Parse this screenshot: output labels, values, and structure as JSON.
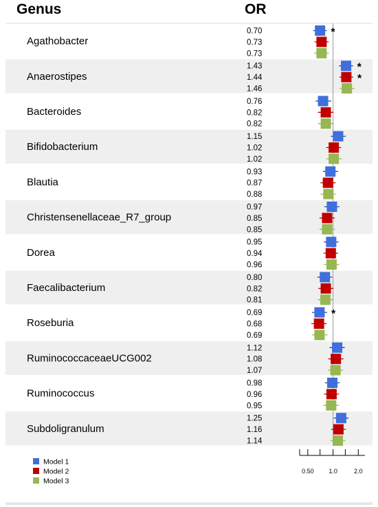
{
  "chart_data": {
    "type": "forest",
    "header": {
      "genus": "Genus",
      "or": "OR"
    },
    "x_scale": "log",
    "xlim": [
      0.4,
      2.4
    ],
    "x_ticks": [
      0.4,
      0.5,
      0.7,
      1.0,
      1.4,
      2.0
    ],
    "x_tick_labels": {
      "0.5": "0.50",
      "1": "1.0",
      "2": "2.0"
    },
    "reference_line": 1.0,
    "series": [
      {
        "name": "Model 1",
        "color": "#3e6fdc",
        "line_color": "#243c9c"
      },
      {
        "name": "Model 2",
        "color": "#c00000",
        "line_color": "#c00000"
      },
      {
        "name": "Model 3",
        "color": "#97b752",
        "line_color": "#97b752"
      }
    ],
    "rows": [
      {
        "genus": "Agathobacter",
        "or_labels": [
          "0.70",
          "0.73",
          "0.73"
        ],
        "or": [
          0.7,
          0.73,
          0.73
        ],
        "ci": [
          [
            0.58,
            0.84
          ],
          [
            0.6,
            0.89
          ],
          [
            0.6,
            0.89
          ]
        ],
        "sig": [
          true,
          false,
          false
        ]
      },
      {
        "genus": "Anaerostipes",
        "or_labels": [
          "1.43",
          "1.44",
          "1.46"
        ],
        "or": [
          1.43,
          1.44,
          1.46
        ],
        "ci": [
          [
            1.18,
            1.73
          ],
          [
            1.19,
            1.74
          ],
          [
            1.2,
            1.8
          ]
        ],
        "sig": [
          true,
          true,
          false
        ]
      },
      {
        "genus": "Bacteroides",
        "or_labels": [
          "0.76",
          "0.82",
          "0.82"
        ],
        "or": [
          0.76,
          0.82,
          0.82
        ],
        "ci": [
          [
            0.62,
            0.95
          ],
          [
            0.66,
            1.01
          ],
          [
            0.66,
            1.02
          ]
        ],
        "sig": [
          false,
          false,
          false
        ]
      },
      {
        "genus": "Bifidobacterium",
        "or_labels": [
          "1.15",
          "1.02",
          "1.02"
        ],
        "or": [
          1.15,
          1.02,
          1.02
        ],
        "ci": [
          [
            0.94,
            1.42
          ],
          [
            0.83,
            1.25
          ],
          [
            0.83,
            1.27
          ]
        ],
        "sig": [
          false,
          false,
          false
        ]
      },
      {
        "genus": "Blautia",
        "or_labels": [
          "0.93",
          "0.87",
          "0.88"
        ],
        "or": [
          0.93,
          0.87,
          0.88
        ],
        "ci": [
          [
            0.76,
            1.15
          ],
          [
            0.71,
            1.07
          ],
          [
            0.71,
            1.08
          ]
        ],
        "sig": [
          false,
          false,
          false
        ]
      },
      {
        "genus": "Christensenellaceae_R7_group",
        "or_labels": [
          "0.97",
          "0.85",
          "0.85"
        ],
        "or": [
          0.97,
          0.85,
          0.85
        ],
        "ci": [
          [
            0.79,
            1.19
          ],
          [
            0.69,
            1.05
          ],
          [
            0.69,
            1.05
          ]
        ],
        "sig": [
          false,
          false,
          false
        ]
      },
      {
        "genus": "Dorea",
        "or_labels": [
          "0.95",
          "0.94",
          "0.96"
        ],
        "or": [
          0.95,
          0.94,
          0.96
        ],
        "ci": [
          [
            0.78,
            1.16
          ],
          [
            0.77,
            1.15
          ],
          [
            0.78,
            1.19
          ]
        ],
        "sig": [
          false,
          false,
          false
        ]
      },
      {
        "genus": "Faecalibacterium",
        "or_labels": [
          "0.80",
          "0.82",
          "0.81"
        ],
        "or": [
          0.8,
          0.82,
          0.81
        ],
        "ci": [
          [
            0.65,
            0.98
          ],
          [
            0.67,
            1.01
          ],
          [
            0.66,
            1.0
          ]
        ],
        "sig": [
          false,
          false,
          false
        ]
      },
      {
        "genus": "Roseburia",
        "or_labels": [
          "0.69",
          "0.68",
          "0.69"
        ],
        "or": [
          0.69,
          0.68,
          0.69
        ],
        "ci": [
          [
            0.56,
            0.85
          ],
          [
            0.55,
            0.84
          ],
          [
            0.56,
            0.86
          ]
        ],
        "sig": [
          true,
          false,
          false
        ]
      },
      {
        "genus": "RuminococcaceaeUCG002",
        "or_labels": [
          "1.12",
          "1.08",
          "1.07"
        ],
        "or": [
          1.12,
          1.08,
          1.07
        ],
        "ci": [
          [
            0.91,
            1.38
          ],
          [
            0.88,
            1.33
          ],
          [
            0.87,
            1.32
          ]
        ],
        "sig": [
          false,
          false,
          false
        ]
      },
      {
        "genus": "Ruminococcus",
        "or_labels": [
          "0.98",
          "0.96",
          "0.95"
        ],
        "or": [
          0.98,
          0.96,
          0.95
        ],
        "ci": [
          [
            0.8,
            1.2
          ],
          [
            0.78,
            1.18
          ],
          [
            0.77,
            1.17
          ]
        ],
        "sig": [
          false,
          false,
          false
        ]
      },
      {
        "genus": "Subdoligranulum",
        "or_labels": [
          "1.25",
          "1.16",
          "1.14"
        ],
        "or": [
          1.25,
          1.16,
          1.14
        ],
        "ci": [
          [
            1.02,
            1.53
          ],
          [
            0.95,
            1.42
          ],
          [
            0.93,
            1.4
          ]
        ],
        "sig": [
          false,
          false,
          false
        ]
      }
    ],
    "significance_marker": "*"
  }
}
